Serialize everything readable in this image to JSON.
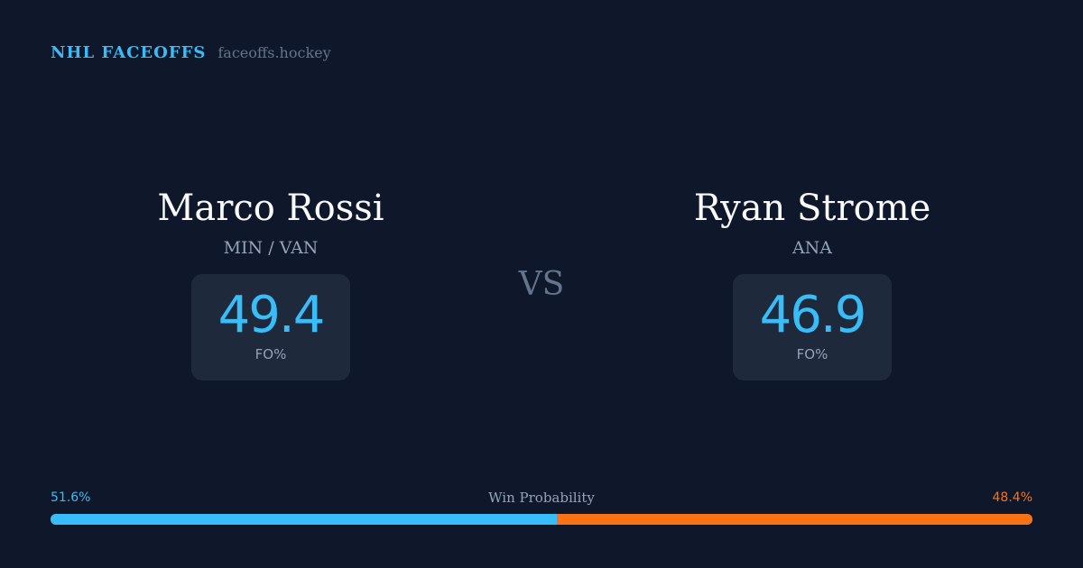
{
  "brand": {
    "name": "NHL FACEOFFS",
    "site": "faceoffs.hockey"
  },
  "players": [
    {
      "name": "Marco Rossi",
      "team": "MIN / VAN",
      "stat_value": "49.4",
      "stat_label": "FO%"
    },
    {
      "name": "Ryan Strome",
      "team": "ANA",
      "stat_value": "46.9",
      "stat_label": "FO%"
    }
  ],
  "versus": "VS",
  "win_probability": {
    "title": "Win Probability",
    "left_label": "51.6%",
    "right_label": "48.4%",
    "left_value": 51.6,
    "right_value": 48.4
  },
  "colors": {
    "background": "#0f172a",
    "card": "#1e293b",
    "accent_blue": "#38bdf8",
    "accent_orange": "#f97316"
  }
}
